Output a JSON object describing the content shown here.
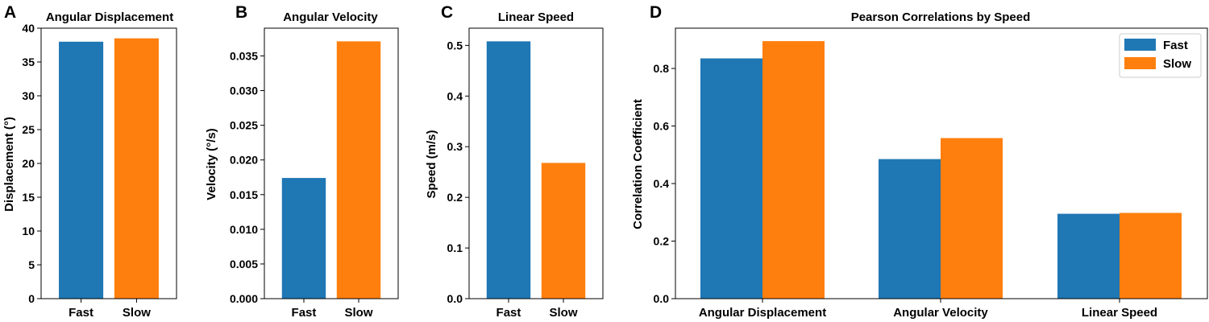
{
  "chart_data": [
    {
      "panel": "A",
      "type": "bar",
      "title": "Angular Displacement",
      "ylabel": "Displacement (°)",
      "xlabel": "",
      "categories": [
        "Fast",
        "Slow"
      ],
      "values": [
        38.0,
        38.5
      ],
      "colors": [
        "#1f77b4",
        "#ff7f0e"
      ],
      "ylim": [
        0,
        40
      ],
      "yticks": [
        "0",
        "5",
        "10",
        "15",
        "20",
        "25",
        "30",
        "35",
        "40"
      ],
      "ytick_values": [
        0,
        5,
        10,
        15,
        20,
        25,
        30,
        35,
        40
      ],
      "grid": false
    },
    {
      "panel": "B",
      "type": "bar",
      "title": "Angular Velocity",
      "ylabel": "Velocity (°/s)",
      "xlabel": "",
      "categories": [
        "Fast",
        "Slow"
      ],
      "values": [
        0.0174,
        0.0371
      ],
      "colors": [
        "#1f77b4",
        "#ff7f0e"
      ],
      "ylim": [
        0,
        0.039
      ],
      "yticks": [
        "0.000",
        "0.005",
        "0.010",
        "0.015",
        "0.020",
        "0.025",
        "0.030",
        "0.035"
      ],
      "ytick_values": [
        0,
        0.005,
        0.01,
        0.015,
        0.02,
        0.025,
        0.03,
        0.035
      ],
      "grid": false
    },
    {
      "panel": "C",
      "type": "bar",
      "title": "Linear Speed",
      "ylabel": "Speed (m/s)",
      "xlabel": "",
      "categories": [
        "Fast",
        "Slow"
      ],
      "values": [
        0.508,
        0.268
      ],
      "colors": [
        "#1f77b4",
        "#ff7f0e"
      ],
      "ylim": [
        0,
        0.534
      ],
      "yticks": [
        "0.0",
        "0.1",
        "0.2",
        "0.3",
        "0.4",
        "0.5"
      ],
      "ytick_values": [
        0,
        0.1,
        0.2,
        0.3,
        0.4,
        0.5
      ],
      "grid": false
    },
    {
      "panel": "D",
      "type": "bar",
      "title": "Pearson Correlations by Speed",
      "ylabel": "Correlation Coefficient",
      "xlabel": "",
      "categories": [
        "Angular Displacement",
        "Angular Velocity",
        "Linear Speed"
      ],
      "series": [
        {
          "name": "Fast",
          "values": [
            0.835,
            0.485,
            0.295
          ],
          "color": "#1f77b4"
        },
        {
          "name": "Slow",
          "values": [
            0.895,
            0.558,
            0.298
          ],
          "color": "#ff7f0e"
        }
      ],
      "ylim": [
        0,
        0.94
      ],
      "yticks": [
        "0.0",
        "0.2",
        "0.4",
        "0.6",
        "0.8"
      ],
      "ytick_values": [
        0,
        0.2,
        0.4,
        0.6,
        0.8
      ],
      "legend": "top-right",
      "grid": false
    }
  ]
}
